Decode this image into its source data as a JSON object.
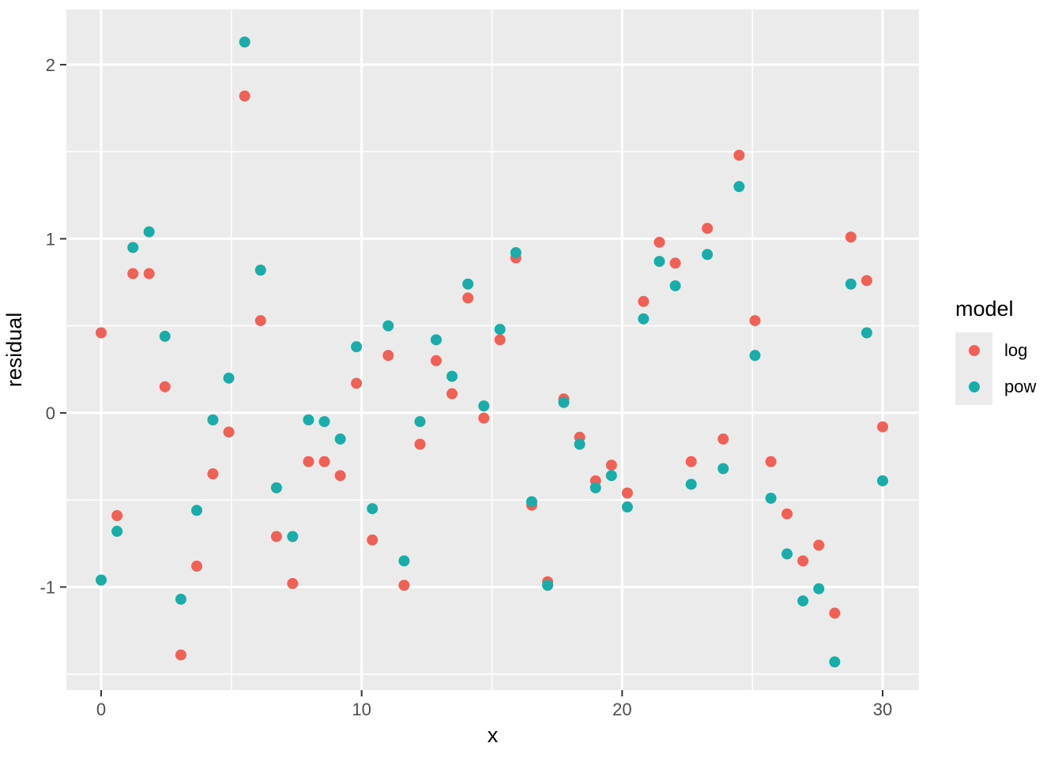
{
  "chart_data": {
    "type": "scatter",
    "title": "",
    "xlabel": "x",
    "ylabel": "residual",
    "x": [
      0,
      0.61,
      1.22,
      1.84,
      2.45,
      3.06,
      3.67,
      4.29,
      4.9,
      5.51,
      6.12,
      6.73,
      7.35,
      7.96,
      8.57,
      9.18,
      9.8,
      10.41,
      11.02,
      11.63,
      12.24,
      12.86,
      13.47,
      14.08,
      14.69,
      15.31,
      15.92,
      16.53,
      17.14,
      17.76,
      18.37,
      18.98,
      19.59,
      20.2,
      20.82,
      21.43,
      22.04,
      22.65,
      23.27,
      23.88,
      24.49,
      25.1,
      25.71,
      26.33,
      26.94,
      27.55,
      28.16,
      28.78,
      29.39,
      30
    ],
    "series": [
      {
        "name": "log",
        "color": "#EF6157",
        "values": [
          0.46,
          -0.59,
          0.8,
          0.8,
          0.15,
          -1.39,
          -0.88,
          -0.35,
          -0.11,
          1.82,
          0.53,
          -0.71,
          -0.98,
          -0.28,
          -0.28,
          -0.36,
          0.17,
          -0.73,
          0.33,
          -0.99,
          -0.18,
          0.3,
          0.11,
          0.66,
          -0.03,
          0.42,
          0.89,
          -0.53,
          -0.97,
          0.08,
          -0.14,
          -0.39,
          -0.3,
          -0.46,
          0.64,
          0.98,
          0.86,
          -0.28,
          1.06,
          -0.15,
          1.48,
          0.53,
          -0.28,
          -0.58,
          -0.85,
          -0.76,
          -1.15,
          1.01,
          0.76,
          -0.08
        ]
      },
      {
        "name": "pow",
        "color": "#1AACA8",
        "values": [
          -0.96,
          -0.68,
          0.95,
          1.04,
          0.44,
          -1.07,
          -0.56,
          -0.04,
          0.2,
          2.13,
          0.82,
          -0.43,
          -0.71,
          -0.04,
          -0.05,
          -0.15,
          0.38,
          -0.55,
          0.5,
          -0.85,
          -0.05,
          0.42,
          0.21,
          0.74,
          0.04,
          0.48,
          0.92,
          -0.51,
          -0.99,
          0.06,
          -0.18,
          -0.43,
          -0.36,
          -0.54,
          0.54,
          0.87,
          0.73,
          -0.41,
          0.91,
          -0.32,
          1.3,
          0.33,
          -0.49,
          -0.81,
          -1.08,
          -1.01,
          -1.43,
          0.74,
          0.46,
          -0.39
        ]
      }
    ],
    "xlim": [
      -1.335,
      31.395
    ],
    "ylim": [
      -1.592,
      2.317
    ],
    "xticks": [
      0,
      10,
      20,
      30
    ],
    "yticks": [
      -1,
      0,
      1,
      2
    ],
    "xticks_minor": [
      5,
      15,
      25
    ],
    "yticks_minor": [
      -1.5,
      -0.5,
      0.5,
      1.5
    ],
    "grid": "major+minor",
    "legend_position": "right",
    "panel_bg": "#EBEBEB",
    "grid_color": "#FFFFFF",
    "tick_color": "#333333",
    "tick_label_color": "#4D4D4D",
    "axis_title_color": "#000000",
    "legend": {
      "title": "model",
      "items": [
        {
          "label": "log",
          "color": "#EF6157"
        },
        {
          "label": "pow",
          "color": "#1AACA8"
        }
      ]
    }
  }
}
